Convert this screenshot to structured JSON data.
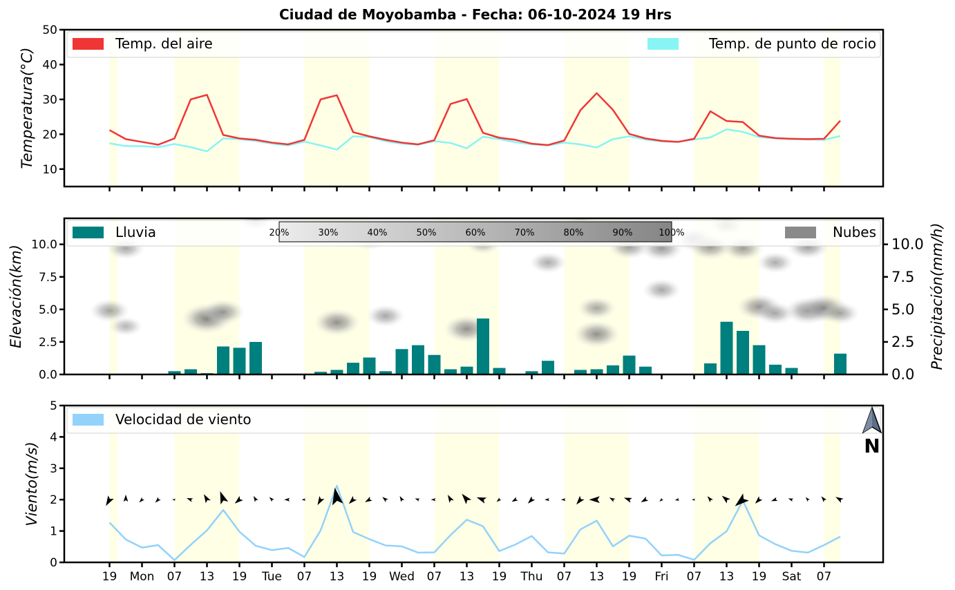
{
  "title": "Ciudad de Moyobamba   -   Fecha: 06-10-2024 19 Hrs",
  "colors": {
    "air": "#f03535",
    "dew": "#88f4f4",
    "rain": "#007f7f",
    "clouds": "#8a8a8a",
    "wind": "#92d2fb",
    "day_band": "#ffffe6"
  },
  "x_ticks": [
    "19",
    "Mon",
    "07",
    "13",
    "19",
    "Tue",
    "07",
    "13",
    "19",
    "Wed",
    "07",
    "13",
    "19",
    "Thu",
    "07",
    "13",
    "19",
    "Fri",
    "07",
    "13",
    "19",
    "Sat",
    "07"
  ],
  "north_label": "N",
  "north_icon": "north-arrow-icon",
  "chart_data": [
    {
      "type": "line",
      "ylabel": "Temperatura(°C)",
      "ylim": [
        5,
        50
      ],
      "yticks": [
        "10",
        "20",
        "30",
        "40",
        "50"
      ],
      "legend": [
        "Temp. del aire",
        "Temp. de punto de rocio"
      ],
      "series": [
        {
          "name": "Temp. del aire",
          "values": [
            21.2,
            18.6,
            17.8,
            17.0,
            18.8,
            30.0,
            31.3,
            19.8,
            18.8,
            18.4,
            17.6,
            17.1,
            18.4,
            30.0,
            31.2,
            20.6,
            19.4,
            18.4,
            17.6,
            17.1,
            18.3,
            28.7,
            30.1,
            20.4,
            19.0,
            18.4,
            17.3,
            16.9,
            18.2,
            26.9,
            31.8,
            27.0,
            20.1,
            18.8,
            18.1,
            17.8,
            18.7,
            26.6,
            23.8,
            23.5,
            19.6,
            18.9,
            18.7,
            18.6,
            18.7,
            23.9
          ]
        },
        {
          "name": "Temp. de punto de rocio",
          "values": [
            17.4,
            16.6,
            16.6,
            16.3,
            17.2,
            16.3,
            15.1,
            18.8,
            18.6,
            18.1,
            17.3,
            16.8,
            17.9,
            16.8,
            15.6,
            19.4,
            19.2,
            18.0,
            17.3,
            17.0,
            18.0,
            17.5,
            16.0,
            19.3,
            18.6,
            17.7,
            17.1,
            16.8,
            17.6,
            17.1,
            16.2,
            18.6,
            19.4,
            18.5,
            17.9,
            17.8,
            18.5,
            19.1,
            21.4,
            20.7,
            19.2,
            18.8,
            18.6,
            18.5,
            18.4,
            19.5
          ]
        }
      ]
    },
    {
      "type": "bar",
      "ylabel": "Elevación(km)",
      "ylabel_right": "Precipitación(mm/h)",
      "ylim": [
        0,
        12
      ],
      "yticks": [
        "0.0",
        "2.5",
        "5.0",
        "7.5",
        "10.0"
      ],
      "legend": [
        "Lluvia",
        "Nubes"
      ],
      "colorbar_ticks": [
        "20%",
        "30%",
        "40%",
        "50%",
        "60%",
        "70%",
        "80%",
        "90%",
        "100%"
      ],
      "series": [
        {
          "name": "Lluvia",
          "values": [
            0.02,
            0.05,
            0.05,
            0.02,
            0.25,
            0.4,
            0.1,
            2.15,
            2.05,
            2.5,
            0.03,
            0.05,
            0.02,
            0.2,
            0.35,
            0.9,
            1.3,
            0.25,
            1.95,
            2.25,
            1.5,
            0.4,
            0.6,
            4.3,
            0.5,
            0.0,
            0.25,
            1.05,
            0.05,
            0.35,
            0.4,
            0.7,
            1.45,
            0.6,
            0.02,
            0.02,
            0.05,
            0.85,
            4.05,
            3.35,
            2.25,
            0.75,
            0.5,
            0.02,
            0.03,
            1.6
          ]
        }
      ],
      "cloud_cells": [
        {
          "t": 0,
          "h": 4.9,
          "d": 0.5
        },
        {
          "t": 1,
          "h": 9.7,
          "d": 0.45
        },
        {
          "t": 1,
          "h": 3.7,
          "d": 0.3
        },
        {
          "t": 6,
          "h": 4.3,
          "d": 0.85
        },
        {
          "t": 7,
          "h": 4.8,
          "d": 0.6
        },
        {
          "t": 9,
          "h": 11.8,
          "d": 0.3
        },
        {
          "t": 14,
          "h": 4.0,
          "d": 0.7
        },
        {
          "t": 16,
          "h": 10.4,
          "d": 0.4
        },
        {
          "t": 17,
          "h": 4.5,
          "d": 0.45
        },
        {
          "t": 21,
          "h": 10.6,
          "d": 0.35
        },
        {
          "t": 22,
          "h": 3.5,
          "d": 0.7
        },
        {
          "t": 23,
          "h": 10.0,
          "d": 0.3
        },
        {
          "t": 27,
          "h": 8.6,
          "d": 0.4
        },
        {
          "t": 29,
          "h": 11.5,
          "d": 0.3
        },
        {
          "t": 30,
          "h": 5.1,
          "d": 0.45
        },
        {
          "t": 30,
          "h": 3.1,
          "d": 0.7
        },
        {
          "t": 32,
          "h": 9.8,
          "d": 0.55
        },
        {
          "t": 34,
          "h": 9.7,
          "d": 0.6
        },
        {
          "t": 34,
          "h": 6.5,
          "d": 0.45
        },
        {
          "t": 36,
          "h": 10.4,
          "d": 0.5
        },
        {
          "t": 37,
          "h": 9.8,
          "d": 0.6
        },
        {
          "t": 38,
          "h": 11.5,
          "d": 0.4
        },
        {
          "t": 39,
          "h": 9.7,
          "d": 0.55
        },
        {
          "t": 40,
          "h": 5.2,
          "d": 0.65
        },
        {
          "t": 41,
          "h": 8.6,
          "d": 0.4
        },
        {
          "t": 41,
          "h": 4.7,
          "d": 0.45
        },
        {
          "t": 43,
          "h": 9.8,
          "d": 0.55
        },
        {
          "t": 43,
          "h": 4.9,
          "d": 0.7
        },
        {
          "t": 44,
          "h": 5.1,
          "d": 0.75
        },
        {
          "t": 45,
          "h": 4.7,
          "d": 0.45
        }
      ]
    },
    {
      "type": "line",
      "ylabel": "Viento(m/s)",
      "ylim": [
        0,
        5
      ],
      "yticks": [
        "0",
        "1",
        "2",
        "3",
        "4",
        "5"
      ],
      "legend": [
        "Velocidad de viento"
      ],
      "series": [
        {
          "name": "Velocidad de viento",
          "values": [
            1.27,
            0.73,
            0.47,
            0.55,
            0.07,
            0.56,
            1.02,
            1.67,
            0.98,
            0.53,
            0.39,
            0.46,
            0.17,
            1.02,
            2.44,
            0.97,
            0.74,
            0.54,
            0.51,
            0.31,
            0.32,
            0.87,
            1.36,
            1.15,
            0.36,
            0.57,
            0.84,
            0.32,
            0.28,
            1.05,
            1.33,
            0.51,
            0.85,
            0.76,
            0.22,
            0.24,
            0.08,
            0.61,
            0.99,
            1.97,
            0.86,
            0.58,
            0.37,
            0.31,
            0.55,
            0.82
          ]
        }
      ],
      "wind_dir_deg": [
        120,
        270,
        135,
        135,
        180,
        200,
        240,
        250,
        140,
        240,
        225,
        180,
        180,
        120,
        260,
        135,
        150,
        220,
        240,
        200,
        180,
        240,
        230,
        200,
        140,
        150,
        135,
        180,
        180,
        130,
        180,
        210,
        200,
        150,
        140,
        170,
        180,
        230,
        220,
        140,
        135,
        160,
        200,
        230,
        230,
        210
      ]
    }
  ]
}
